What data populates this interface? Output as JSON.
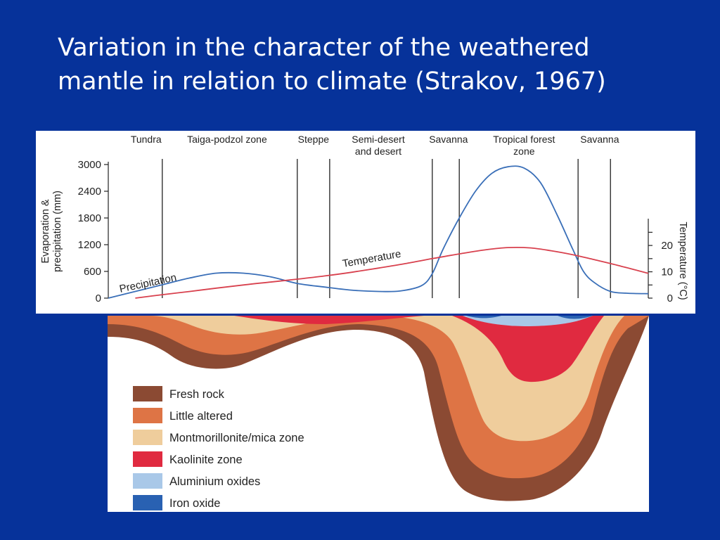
{
  "title": {
    "line1": "Variation in the character of the weathered",
    "line2": "mantle in relation to climate (Strakov, 1967)"
  },
  "chart_data": {
    "type": "line",
    "zones": [
      {
        "label": "Tundra",
        "lines": [
          "Tundra"
        ],
        "x_center": 0.07
      },
      {
        "label": "Taiga-podzol zone",
        "lines": [
          "Taiga-podzol zone"
        ],
        "x_center": 0.22
      },
      {
        "label": "Steppe",
        "lines": [
          "Steppe"
        ],
        "x_center": 0.38
      },
      {
        "label": "Semi-desert and desert",
        "lines": [
          "Semi-desert",
          "and desert"
        ],
        "x_center": 0.5
      },
      {
        "label": "Savanna",
        "lines": [
          "Savanna"
        ],
        "x_center": 0.63
      },
      {
        "label": "Tropical forest zone",
        "lines": [
          "Tropical forest",
          "zone"
        ],
        "x_center": 0.77
      },
      {
        "label": "Savanna",
        "lines": [
          "Savanna"
        ],
        "x_center": 0.91
      }
    ],
    "zone_boundaries": [
      0.1,
      0.35,
      0.41,
      0.6,
      0.65,
      0.87,
      0.93
    ],
    "y_left": {
      "label_lines": [
        "Evaporation &",
        "precipitation (mm)"
      ],
      "ticks": [
        0,
        600,
        1200,
        1800,
        2400,
        3000
      ],
      "range": [
        0,
        3000
      ]
    },
    "y_right": {
      "label": "Temperature (°C)",
      "ticks": [
        0,
        10,
        20
      ],
      "minor_ticks": [
        0,
        5,
        10,
        15,
        20,
        25
      ],
      "range": [
        0,
        27.5
      ]
    },
    "series": [
      {
        "name": "Precipitation",
        "color": "#3a6fb8",
        "axis": "left",
        "x": [
          0.0,
          0.05,
          0.1,
          0.15,
          0.2,
          0.25,
          0.3,
          0.35,
          0.4,
          0.45,
          0.5,
          0.54,
          0.58,
          0.6,
          0.62,
          0.65,
          0.68,
          0.71,
          0.74,
          0.77,
          0.8,
          0.83,
          0.86,
          0.88,
          0.9,
          0.93,
          0.96,
          1.0
        ],
        "y": [
          0,
          150,
          300,
          450,
          560,
          560,
          480,
          330,
          250,
          180,
          150,
          160,
          280,
          550,
          1100,
          1800,
          2400,
          2800,
          2950,
          2920,
          2600,
          1900,
          1100,
          600,
          350,
          150,
          110,
          100
        ]
      },
      {
        "name": "Temperature",
        "color": "#d8414e",
        "axis": "right",
        "x": [
          0.05,
          0.1,
          0.15,
          0.2,
          0.25,
          0.3,
          0.35,
          0.4,
          0.45,
          0.5,
          0.55,
          0.6,
          0.65,
          0.7,
          0.74,
          0.78,
          0.82,
          0.86,
          0.9,
          0.95,
          1.0
        ],
        "y": [
          0,
          1.3,
          2.5,
          3.8,
          5.0,
          6.1,
          7.2,
          8.4,
          9.8,
          11.4,
          13.1,
          15.0,
          16.8,
          18.4,
          19.2,
          19.1,
          18.0,
          16.5,
          14.6,
          12.1,
          9.4
        ]
      }
    ],
    "annotations": [
      {
        "text": "Precipitation",
        "rotate": -12
      },
      {
        "text": "Temperature",
        "rotate": -10
      }
    ]
  },
  "profile": {
    "legend": [
      {
        "label": "Fresh rock",
        "color": "#8b4a33"
      },
      {
        "label": "Little altered",
        "color": "#de7445"
      },
      {
        "label": "Montmorillonite/mica zone",
        "color": "#efcd9c"
      },
      {
        "label": "Kaolinite zone",
        "color": "#e02a40"
      },
      {
        "label": "Aluminium oxides",
        "color": "#a9c8e8"
      },
      {
        "label": "Iron oxide",
        "color": "#2961b2"
      }
    ]
  }
}
